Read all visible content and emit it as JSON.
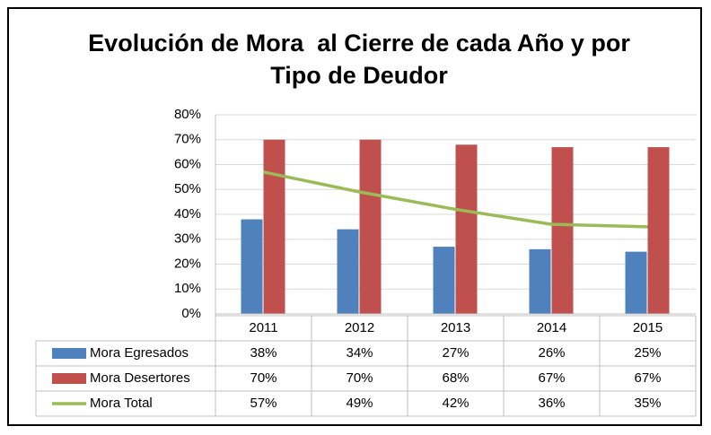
{
  "chart_data": {
    "type": "bar",
    "title": "Evolución de Mora  al Cierre de cada Año y por Tipo de Deudor",
    "categories": [
      "2011",
      "2012",
      "2013",
      "2014",
      "2015"
    ],
    "series": [
      {
        "name": "Mora Egresados",
        "color": "#4f81bd",
        "type": "bar",
        "values": [
          38,
          34,
          27,
          26,
          25
        ],
        "value_labels": [
          "38%",
          "34%",
          "27%",
          "26%",
          "25%"
        ]
      },
      {
        "name": "Mora Desertores",
        "color": "#c0504d",
        "type": "bar",
        "values": [
          70,
          70,
          68,
          67,
          67
        ],
        "value_labels": [
          "70%",
          "70%",
          "68%",
          "67%",
          "67%"
        ]
      },
      {
        "name": "Mora Total",
        "color": "#9bbb59",
        "type": "line",
        "values": [
          57,
          49,
          42,
          36,
          35
        ],
        "value_labels": [
          "57%",
          "49%",
          "42%",
          "36%",
          "35%"
        ]
      }
    ],
    "ylim": [
      0,
      80
    ],
    "yticks": [
      {
        "value": 0,
        "label": "0%"
      },
      {
        "value": 10,
        "label": "10%"
      },
      {
        "value": 20,
        "label": "20%"
      },
      {
        "value": 30,
        "label": "30%"
      },
      {
        "value": 40,
        "label": "40%"
      },
      {
        "value": 50,
        "label": "50%"
      },
      {
        "value": 60,
        "label": "60%"
      },
      {
        "value": 70,
        "label": "70%"
      },
      {
        "value": 80,
        "label": "80%"
      }
    ],
    "grid": true,
    "data_table": true
  }
}
